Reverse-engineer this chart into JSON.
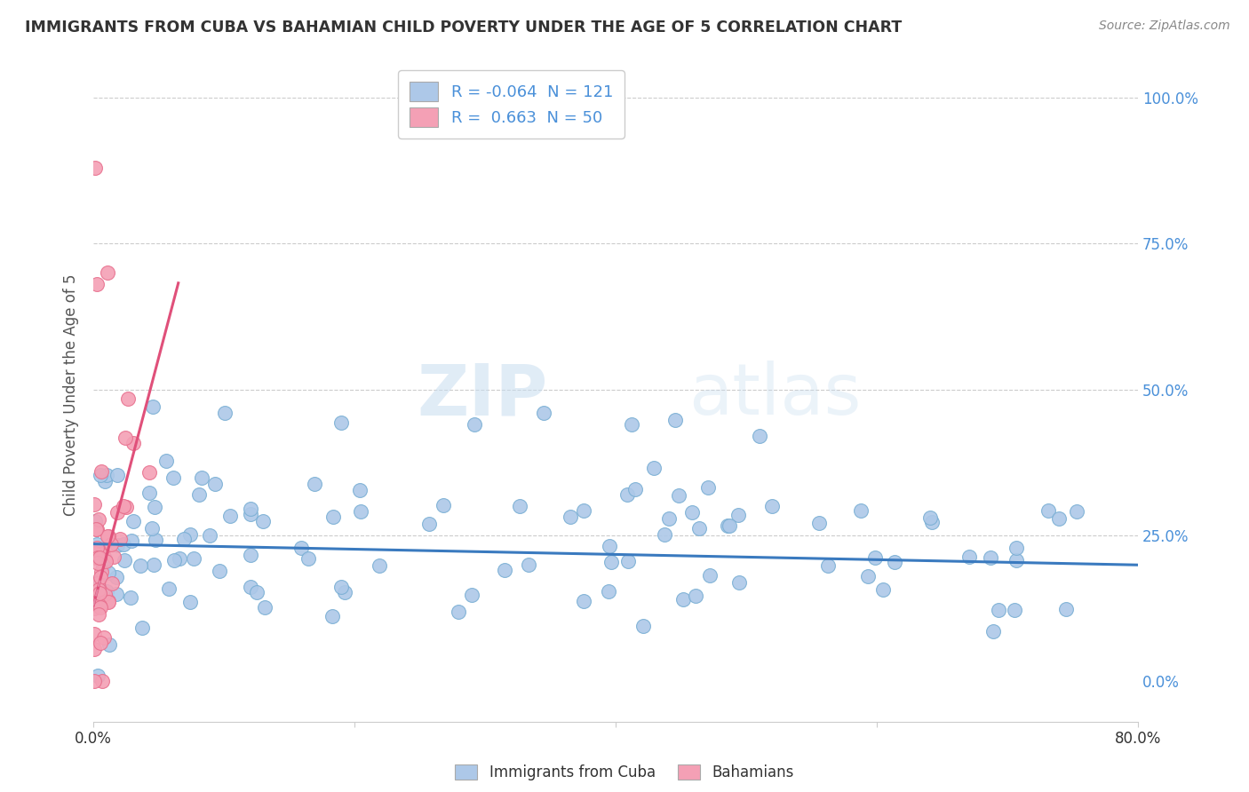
{
  "title": "IMMIGRANTS FROM CUBA VS BAHAMIAN CHILD POVERTY UNDER THE AGE OF 5 CORRELATION CHART",
  "source": "Source: ZipAtlas.com",
  "ylabel": "Child Poverty Under the Age of 5",
  "xlim": [
    0,
    0.8
  ],
  "ylim": [
    -0.07,
    1.05
  ],
  "xtick_labels": [
    "0.0%",
    "",
    "",
    "",
    "80.0%"
  ],
  "right_ytick_labels": [
    "0.0%",
    "25.0%",
    "50.0%",
    "75.0%",
    "100.0%"
  ],
  "blue_color": "#adc8e8",
  "blue_edge": "#7aafd4",
  "pink_color": "#f4a0b5",
  "pink_edge": "#e8708e",
  "blue_line_color": "#3a7abf",
  "pink_line_color": "#e0507a",
  "pink_dash_color": "#e8a0b8",
  "watermark_zip": "ZIP",
  "watermark_atlas": "atlas",
  "legend_R1": "-0.064",
  "legend_N1": "121",
  "legend_R2": "0.663",
  "legend_N2": "50",
  "legend_label1": "Immigrants from Cuba",
  "legend_label2": "Bahamians",
  "blue_line_slope": -0.045,
  "blue_line_intercept": 0.235,
  "pink_line_slope": 8.5,
  "pink_line_intercept": 0.13
}
